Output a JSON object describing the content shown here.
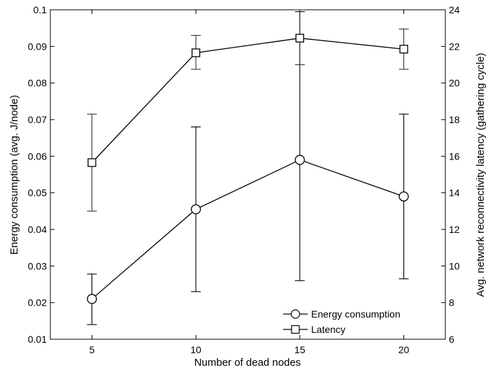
{
  "chart_data": {
    "type": "line",
    "title": "",
    "xlabel": "Number of dead nodes",
    "ylabel": "Energy consumption (avg. J/node)",
    "y2label": "Avg. network reconnectivity latency (gathering cycle)",
    "x": [
      5,
      10,
      15,
      20
    ],
    "x_ticks": [
      "5",
      "10",
      "15",
      "20"
    ],
    "xlim": [
      3,
      22
    ],
    "ylim": [
      0.01,
      0.1
    ],
    "y_ticks": [
      "0.01",
      "0.02",
      "0.03",
      "0.04",
      "0.05",
      "0.06",
      "0.07",
      "0.08",
      "0.09",
      "0.1"
    ],
    "y2lim": [
      6,
      24
    ],
    "y2_ticks": [
      "6",
      "8",
      "10",
      "12",
      "14",
      "16",
      "18",
      "20",
      "22",
      "24"
    ],
    "grid": false,
    "legend_position": "lower-right",
    "series": [
      {
        "name": "Energy consumption",
        "axis": "left",
        "marker": "circle",
        "values": [
          0.021,
          0.0455,
          0.059,
          0.049
        ],
        "err_low": [
          0.014,
          0.023,
          0.026,
          0.0265
        ],
        "err_high": [
          0.0278,
          0.068,
          0.0995,
          0.0715
        ]
      },
      {
        "name": "Latency",
        "axis": "right",
        "marker": "square",
        "values": [
          15.65,
          21.65,
          22.45,
          21.85
        ],
        "err_low": [
          13.0,
          20.75,
          21.0,
          20.75
        ],
        "err_high": [
          18.3,
          22.6,
          24.0,
          22.95
        ]
      }
    ]
  }
}
